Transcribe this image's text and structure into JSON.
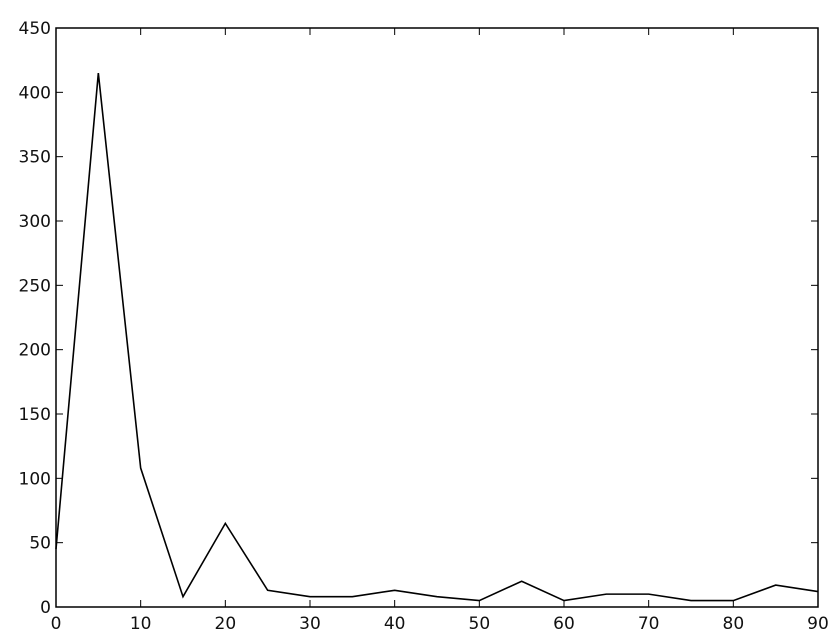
{
  "chart_data": {
    "type": "line",
    "x": [
      0,
      5,
      10,
      15,
      20,
      25,
      30,
      35,
      40,
      45,
      50,
      55,
      60,
      65,
      70,
      75,
      80,
      85,
      90
    ],
    "series": [
      {
        "color": "#000000",
        "values": [
          45,
          415,
          108,
          8,
          65,
          13,
          8,
          8,
          13,
          8,
          5,
          20,
          5,
          10,
          10,
          5,
          5,
          17,
          12
        ]
      }
    ],
    "xlim": [
      0,
      90
    ],
    "xticks": [
      0,
      10,
      20,
      30,
      40,
      50,
      60,
      70,
      80,
      90
    ],
    "ylim": [
      0,
      450
    ],
    "yticks": [
      0,
      50,
      100,
      150,
      200,
      250,
      300,
      350,
      400,
      450
    ],
    "grid": false
  }
}
